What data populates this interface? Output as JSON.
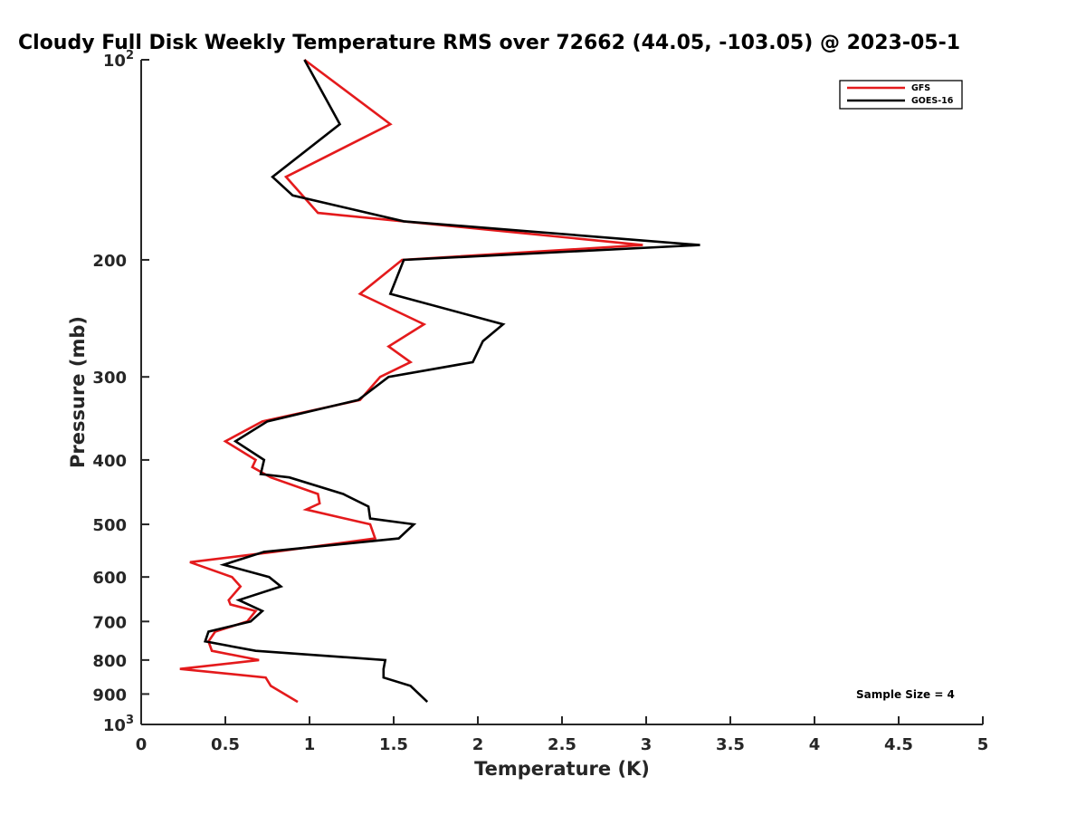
{
  "chart_data": {
    "type": "line",
    "title": "Cloudy Full Disk Weekly Temperature RMS over 72662 (44.05, -103.05) @ 2023-05-1",
    "xlabel": "Temperature (K)",
    "ylabel": "Pressure (mb)",
    "xlim": [
      0,
      5
    ],
    "ylim": [
      100,
      1000
    ],
    "y_scale": "log",
    "y_reversed": true,
    "grid": false,
    "legend_position": "top-right",
    "x_ticks": [
      "0",
      "0.5",
      "1",
      "1.5",
      "2",
      "2.5",
      "3",
      "3.5",
      "4",
      "4.5",
      "5"
    ],
    "y_ticks": [
      {
        "value": 100,
        "base": "10",
        "exp": "2"
      },
      {
        "value": 200,
        "base": "200",
        "exp": ""
      },
      {
        "value": 300,
        "base": "300",
        "exp": ""
      },
      {
        "value": 400,
        "base": "400",
        "exp": ""
      },
      {
        "value": 500,
        "base": "500",
        "exp": ""
      },
      {
        "value": 600,
        "base": "600",
        "exp": ""
      },
      {
        "value": 700,
        "base": "700",
        "exp": ""
      },
      {
        "value": 800,
        "base": "800",
        "exp": ""
      },
      {
        "value": 900,
        "base": "900",
        "exp": ""
      },
      {
        "value": 1000,
        "base": "10",
        "exp": "3"
      }
    ],
    "series": [
      {
        "name": "GFS",
        "color": "#e41a1c",
        "points": [
          [
            0.97,
            100
          ],
          [
            1.48,
            125
          ],
          [
            0.86,
            150
          ],
          [
            1.05,
            170
          ],
          [
            2.98,
            190
          ],
          [
            1.55,
            200
          ],
          [
            1.3,
            225
          ],
          [
            1.68,
            250
          ],
          [
            1.47,
            270
          ],
          [
            1.6,
            285
          ],
          [
            1.42,
            300
          ],
          [
            1.3,
            325
          ],
          [
            0.72,
            350
          ],
          [
            0.5,
            375
          ],
          [
            0.68,
            400
          ],
          [
            0.66,
            410
          ],
          [
            0.77,
            425
          ],
          [
            1.05,
            450
          ],
          [
            1.06,
            465
          ],
          [
            0.98,
            475
          ],
          [
            1.36,
            500
          ],
          [
            1.39,
            525
          ],
          [
            0.79,
            550
          ],
          [
            0.29,
            570
          ],
          [
            0.54,
            600
          ],
          [
            0.59,
            620
          ],
          [
            0.52,
            650
          ],
          [
            0.53,
            660
          ],
          [
            0.68,
            675
          ],
          [
            0.63,
            700
          ],
          [
            0.44,
            725
          ],
          [
            0.4,
            750
          ],
          [
            0.42,
            775
          ],
          [
            0.7,
            800
          ],
          [
            0.23,
            825
          ],
          [
            0.74,
            850
          ],
          [
            0.77,
            875
          ],
          [
            0.93,
            925
          ]
        ]
      },
      {
        "name": "GOES-16",
        "color": "#000000",
        "points": [
          [
            0.97,
            100
          ],
          [
            1.18,
            125
          ],
          [
            0.78,
            150
          ],
          [
            0.9,
            160
          ],
          [
            1.56,
            175
          ],
          [
            3.32,
            190
          ],
          [
            1.56,
            200
          ],
          [
            1.48,
            225
          ],
          [
            2.15,
            250
          ],
          [
            2.03,
            265
          ],
          [
            1.97,
            285
          ],
          [
            1.47,
            300
          ],
          [
            1.29,
            325
          ],
          [
            0.75,
            350
          ],
          [
            0.56,
            375
          ],
          [
            0.73,
            400
          ],
          [
            0.71,
            420
          ],
          [
            0.88,
            425
          ],
          [
            1.2,
            450
          ],
          [
            1.35,
            470
          ],
          [
            1.36,
            490
          ],
          [
            1.62,
            500
          ],
          [
            1.53,
            525
          ],
          [
            0.73,
            550
          ],
          [
            0.49,
            575
          ],
          [
            0.76,
            600
          ],
          [
            0.83,
            620
          ],
          [
            0.58,
            650
          ],
          [
            0.72,
            675
          ],
          [
            0.65,
            700
          ],
          [
            0.4,
            725
          ],
          [
            0.38,
            750
          ],
          [
            0.68,
            775
          ],
          [
            1.45,
            800
          ],
          [
            1.44,
            825
          ],
          [
            1.44,
            850
          ],
          [
            1.6,
            875
          ],
          [
            1.7,
            925
          ]
        ]
      }
    ],
    "annotations": [
      {
        "text": "Sample Size = 4",
        "position": "bottom-right"
      }
    ]
  }
}
